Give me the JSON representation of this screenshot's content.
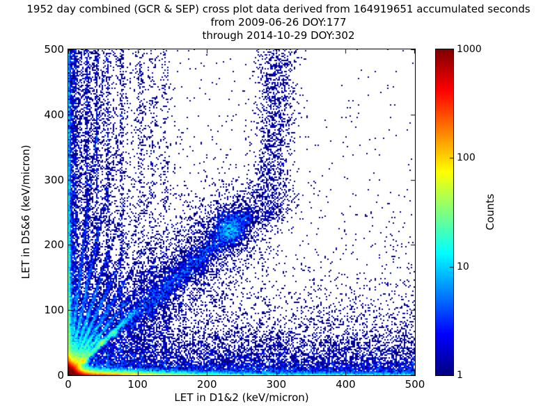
{
  "title": {
    "line1": "1952 day combined (GCR & SEP) cross plot data derived from 164919651 accumulated seconds",
    "line2": "from 2009-06-26 DOY:177",
    "line3": "through 2014-10-29 DOY:302"
  },
  "chart_data": {
    "type": "heatmap",
    "title": "1952 day combined (GCR & SEP) cross plot data derived from 164919651 accumulated seconds",
    "subtitle_lines": [
      "from 2009-06-26 DOY:177",
      "through 2014-10-29 DOY:302"
    ],
    "xlabel": "LET in D1&2 (keV/micron)",
    "ylabel": "LET in D5&6 (keV/micron)",
    "xlim": [
      0,
      500
    ],
    "ylim": [
      0,
      500
    ],
    "x_ticks": [
      "0",
      "100",
      "200",
      "300",
      "400",
      "500"
    ],
    "y_ticks": [
      "0",
      "100",
      "200",
      "300",
      "400",
      "500"
    ],
    "grid": false,
    "background_zero_color": "#ffffff",
    "colormap": "jet",
    "color_scale": "log",
    "count_range": [
      1,
      1000
    ],
    "colorbar": {
      "label": "Counts",
      "tick_values": [
        1000,
        100,
        10,
        1
      ],
      "tick_labels": [
        "1000",
        "100",
        "10",
        "1"
      ],
      "position": "right",
      "top_color": "#800000",
      "bottom_color": "#000080"
    },
    "density_model": {
      "seed": 42,
      "bin_size_units": 2,
      "features": [
        {
          "kind": "exp2d",
          "n": 70000,
          "sx": 5.5,
          "sy": 5.5
        },
        {
          "kind": "hband",
          "n": 26000,
          "y_exp": 2.6,
          "x_exp": 55,
          "x_unif_frac": 0.15
        },
        {
          "kind": "vcol",
          "n": 6500,
          "x_exp": 2.2,
          "y_exp": 130,
          "y_unif_frac": 0.3
        },
        {
          "kind": "ray",
          "n": 4200,
          "slope": 1.02,
          "t_exp": 42,
          "t_max": 97,
          "sigma": 2.1
        },
        {
          "kind": "blob",
          "n": 620,
          "x": 22,
          "y": 22,
          "sx": 2.6,
          "sy": 2.6
        },
        {
          "kind": "blob",
          "n": 340,
          "x": 48,
          "y": 50,
          "sx": 3,
          "sy": 3
        },
        {
          "kind": "blob",
          "n": 260,
          "x": 66,
          "y": 64,
          "sx": 3,
          "sy": 3
        },
        {
          "kind": "ray",
          "n": 2600,
          "slope": 1.35,
          "t_exp": 26,
          "t_max": 330,
          "sigma": 1.7
        },
        {
          "kind": "ray",
          "n": 2400,
          "slope": 1.75,
          "t_exp": 24,
          "t_max": 285,
          "sigma": 1.7
        },
        {
          "kind": "ray",
          "n": 2200,
          "slope": 2.3,
          "t_exp": 22,
          "t_max": 217,
          "sigma": 1.6
        },
        {
          "kind": "ray",
          "n": 2000,
          "slope": 3.2,
          "t_exp": 20,
          "t_max": 156,
          "sigma": 1.6
        },
        {
          "kind": "ray",
          "n": 1800,
          "slope": 5.0,
          "t_exp": 18,
          "t_max": 100,
          "sigma": 1.5
        },
        {
          "kind": "ray",
          "n": 1500,
          "slope": 9.0,
          "t_exp": 15,
          "t_max": 55,
          "sigma": 1.4
        },
        {
          "kind": "segment",
          "n": 2800,
          "x1": 78,
          "y1": 76,
          "x2": 265,
          "y2": 248,
          "sigma": 8
        },
        {
          "kind": "segment",
          "n": 5200,
          "x1": 0,
          "y1": 0,
          "x2": 265,
          "y2": 255,
          "sigma": 30
        },
        {
          "kind": "blob",
          "n": 1100,
          "x": 232,
          "y": 225,
          "sx": 11,
          "sy": 13
        },
        {
          "kind": "vband",
          "n": 1500,
          "x": 290,
          "sx": 15,
          "y1": 235,
          "y2": 500,
          "drift": 0.05
        },
        {
          "kind": "stripe",
          "n": 500,
          "x": 10,
          "sx": 1.2,
          "pow": 1.3
        },
        {
          "kind": "stripe",
          "n": 460,
          "x": 27,
          "sx": 1.2,
          "pow": 1.3
        },
        {
          "kind": "stripe",
          "n": 430,
          "x": 41,
          "sx": 1.3,
          "pow": 1.3
        },
        {
          "kind": "stripe",
          "n": 400,
          "x": 57,
          "sx": 1.4,
          "pow": 1.3
        },
        {
          "kind": "stripe",
          "n": 380,
          "x": 77,
          "sx": 1.6,
          "pow": 1.3
        },
        {
          "kind": "stripe",
          "n": 280,
          "x": 105,
          "sx": 3,
          "pow": 1.2
        },
        {
          "kind": "stripe",
          "n": 260,
          "x": 122,
          "sx": 3,
          "pow": 1.2
        },
        {
          "kind": "stripe",
          "n": 240,
          "x": 140,
          "sx": 3,
          "pow": 1.2
        },
        {
          "kind": "hscatter",
          "n": 8000,
          "y_exp": 30
        },
        {
          "kind": "hscatter",
          "n": 2500,
          "y_exp": 70
        },
        {
          "kind": "vscatter",
          "n": 3000,
          "x_exp": 30
        },
        {
          "kind": "vscatter",
          "n": 1400,
          "x_exp": 60
        },
        {
          "kind": "sparse",
          "n": 2200,
          "x0": 150,
          "fx": 170,
          "y0": 150,
          "fy": 170
        },
        {
          "kind": "uniform",
          "n": 300
        }
      ]
    }
  }
}
